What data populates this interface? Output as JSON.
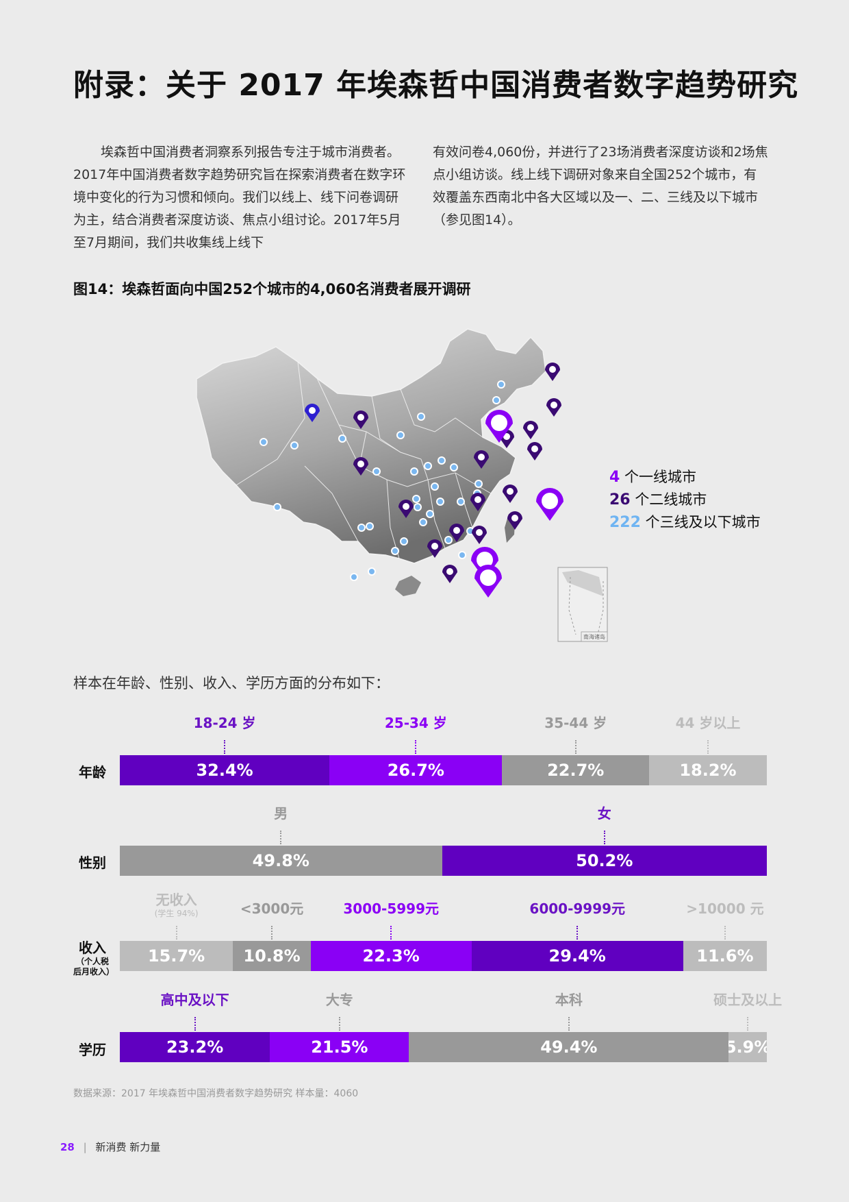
{
  "page": {
    "title": "附录：关于 2017 年埃森哲中国消费者数字趋势研究",
    "intro_left": "埃森哲中国消费者洞察系列报告专注于城市消费者。2017年中国消费者数字趋势研究旨在探索消费者在数字环境中变化的行为习惯和倾向。我们以线上、线下问卷调研为主，结合消费者深度访谈、焦点小组讨论。2017年5月至7月期间，我们共收集线上线下",
    "intro_right": "有效问卷4,060份，并进行了23场消费者深度访谈和2场焦点小组访谈。线上线下调研对象来自全国252个城市，有效覆盖东西南北中各大区域以及一、二、三线及以下城市（参见图14）。",
    "figure_title": "图14：埃森哲面向中国252个城市的4,060名消费者展开调研",
    "map_inset_label": "南海诸岛",
    "legend": [
      {
        "num": "4",
        "label": "个一线城市",
        "color": "#8a00f5"
      },
      {
        "num": "26",
        "label": "个二线城市",
        "color": "#3a0a72"
      },
      {
        "num": "222",
        "label": "个三线及以下城市",
        "color": "#6fb4f2"
      }
    ],
    "distribution_title": "样本在年龄、性别、收入、学历方面的分布如下：",
    "source": "数据来源：2017 年埃森哲中国消费者数字趋势研究 样本量：4060",
    "footer": {
      "page_number": "28",
      "separator": "|",
      "text": "新消费 新力量"
    }
  },
  "colors": {
    "dark_purple": "#6000c0",
    "bright_purple": "#8a00f5",
    "mid_gray": "#999999",
    "light_gray": "#bcbcbc"
  },
  "rows": {
    "age": {
      "label": "年龄",
      "segments": [
        {
          "cat": "18-24 岁",
          "value": 32.4,
          "text": "32.4%",
          "color": "#6000c0",
          "cat_color": "#6a12c4"
        },
        {
          "cat": "25-34 岁",
          "value": 26.7,
          "text": "26.7%",
          "color": "#8a00f5",
          "cat_color": "#8a00f5"
        },
        {
          "cat": "35-44 岁",
          "value": 22.7,
          "text": "22.7%",
          "color": "#999999",
          "cat_color": "#999999"
        },
        {
          "cat": "44 岁以上",
          "value": 18.2,
          "text": "18.2%",
          "color": "#bcbcbc",
          "cat_color": "#bcbcbc"
        }
      ]
    },
    "gender": {
      "label": "性别",
      "segments": [
        {
          "cat": "男",
          "value": 49.8,
          "text": "49.8%",
          "color": "#999999",
          "cat_color": "#999999"
        },
        {
          "cat": "女",
          "value": 50.2,
          "text": "50.2%",
          "color": "#6000c0",
          "cat_color": "#6a12c4"
        }
      ]
    },
    "income": {
      "label": "收入",
      "sub_label": "（个人税后月收入）",
      "segments": [
        {
          "cat": "无收入",
          "cat_sub": "(学生 94%)",
          "value": 15.7,
          "text": "15.7%",
          "color": "#bcbcbc",
          "cat_color": "#bcbcbc"
        },
        {
          "cat": "<3000元",
          "value": 10.8,
          "text": "10.8%",
          "color": "#999999",
          "cat_color": "#999999"
        },
        {
          "cat": "3000-5999元",
          "value": 22.3,
          "text": "22.3%",
          "color": "#8a00f5",
          "cat_color": "#8a00f5"
        },
        {
          "cat": "6000-9999元",
          "value": 29.4,
          "text": "29.4%",
          "color": "#6000c0",
          "cat_color": "#6a12c4"
        },
        {
          "cat": ">10000 元",
          "value": 11.6,
          "text": "11.6%",
          "color": "#bcbcbc",
          "cat_color": "#bcbcbc"
        }
      ]
    },
    "education": {
      "label": "学历",
      "segments": [
        {
          "cat": "高中及以下",
          "value": 23.2,
          "text": "23.2%",
          "color": "#6000c0",
          "cat_color": "#6a12c4"
        },
        {
          "cat": "大专",
          "value": 21.5,
          "text": "21.5%",
          "color": "#8a00f5",
          "cat_color": "#999999"
        },
        {
          "cat": "本科",
          "value": 49.4,
          "text": "49.4%",
          "color": "#999999",
          "cat_color": "#999999"
        },
        {
          "cat": "硕士及以上",
          "value": 5.9,
          "text": "5.9%",
          "color": "#bcbcbc",
          "cat_color": "#bcbcbc"
        }
      ]
    }
  }
}
